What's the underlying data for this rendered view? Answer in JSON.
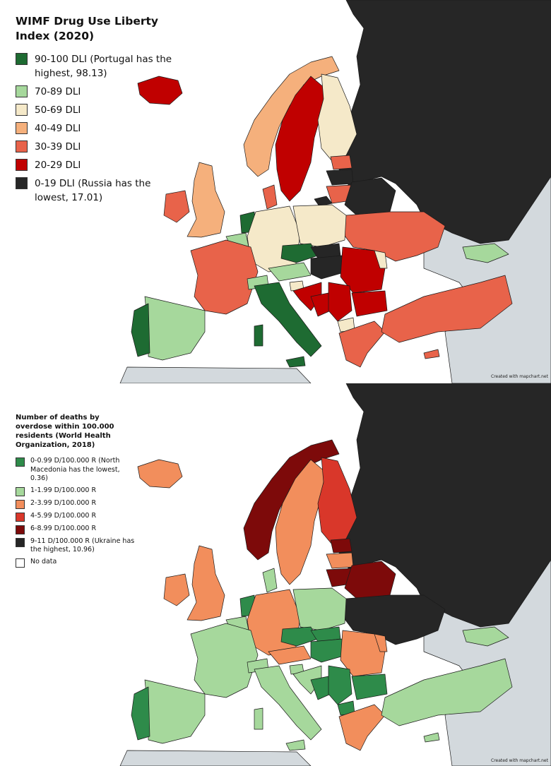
{
  "top_map": {
    "title": "WIMF Drug Use Liberty Index (2020)",
    "legend": [
      {
        "label": "90-100 DLI (Portugal has the highest, 98.13)",
        "color": "#1e6b32"
      },
      {
        "label": "70-89 DLI",
        "color": "#a6d89c"
      },
      {
        "label": "50-69 DLI",
        "color": "#f5e9c9"
      },
      {
        "label": "40-49 DLI",
        "color": "#f5b07c"
      },
      {
        "label": "30-39 DLI",
        "color": "#e8634a"
      },
      {
        "label": "20-29 DLI",
        "color": "#c00000"
      },
      {
        "label": "0-19 DLI (Russia has the lowest, 17.01)",
        "color": "#262626"
      }
    ],
    "credit": "Created with mapchart.net"
  },
  "bottom_map": {
    "title": "Number of deaths by overdose within 100.000 residents (World Health Organization, 2018)",
    "legend": [
      {
        "label": "0-0.99 D/100.000 R (North Macedonia has the lowest, 0.36)",
        "color": "#2e8b4a"
      },
      {
        "label": "1-1.99 D/100.000 R",
        "color": "#a6d89c"
      },
      {
        "label": "2-3.99 D/100.000 R",
        "color": "#f28e5c"
      },
      {
        "label": "4-5.99 D/100.000 R",
        "color": "#d9372a"
      },
      {
        "label": "6-8.99 D/100.000 R",
        "color": "#7d0a0a"
      },
      {
        "label": "9-11 D/100.000 R (Ukraine has the highest, 10.96)",
        "color": "#262626"
      },
      {
        "label": "No data",
        "color": "#ffffff"
      }
    ],
    "credit": "Created with mapchart.net"
  },
  "colors": {
    "background": "#ffffff",
    "non_europe": "#d3d9dd",
    "border": "#1a1a1a"
  }
}
